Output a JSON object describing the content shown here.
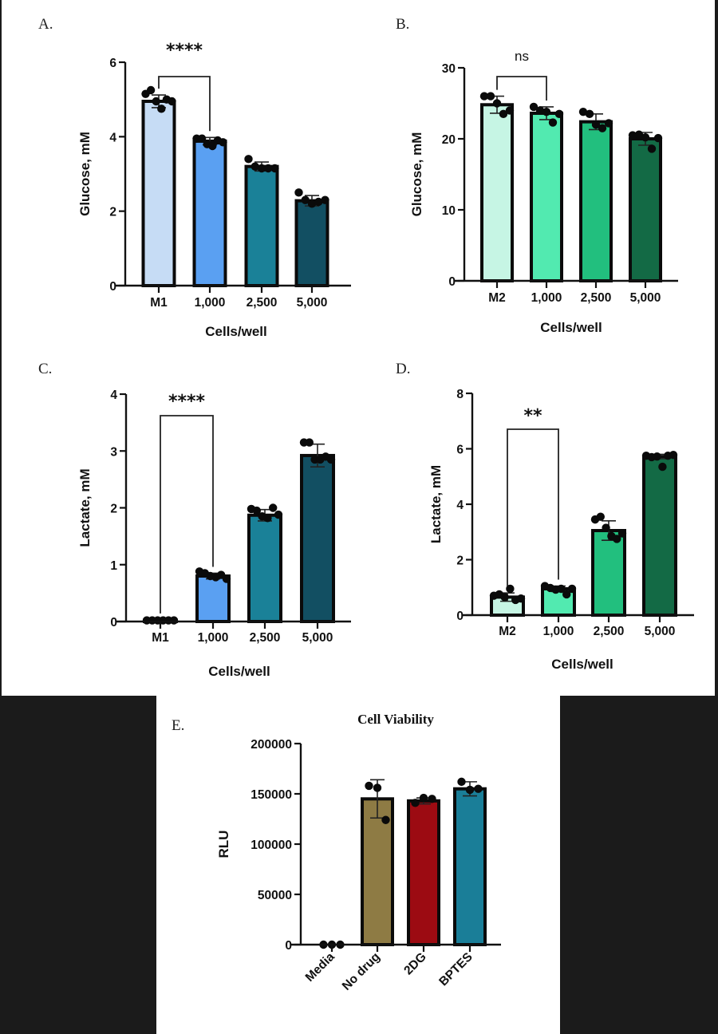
{
  "chart_data": [
    {
      "panel": "A.",
      "type": "bar",
      "title": "",
      "xlabel": "Cells/well",
      "ylabel": "Glucose, mM",
      "ylim": [
        0,
        6
      ],
      "yticks": [
        "0",
        "2",
        "4",
        "6"
      ],
      "ytick_values": [
        0,
        2,
        4,
        6
      ],
      "categories": [
        "M1",
        "1,000",
        "2,500",
        "5,000"
      ],
      "values": [
        4.95,
        3.88,
        3.2,
        2.28
      ],
      "errors": [
        0.17,
        0.1,
        0.12,
        0.14
      ],
      "points": [
        [
          5.15,
          5.25,
          4.95,
          4.75,
          5.0,
          4.95
        ],
        [
          3.95,
          3.95,
          3.8,
          3.75,
          3.9,
          3.85
        ],
        [
          3.4,
          3.2,
          3.15,
          3.15,
          3.15
        ],
        [
          2.5,
          2.3,
          2.2,
          2.25,
          2.3
        ]
      ],
      "colors": [
        "#c6dcf5",
        "#5aa0f2",
        "#1a8198",
        "#124f62"
      ],
      "significance": {
        "label": "****",
        "from": 0,
        "to": 1,
        "y": 5.75
      }
    },
    {
      "panel": "B.",
      "type": "bar",
      "title": "",
      "xlabel": "Cells/well",
      "ylabel": "Glucose, mM",
      "ylim": [
        0,
        30
      ],
      "yticks": [
        "0",
        "10",
        "20",
        "30"
      ],
      "ytick_values": [
        0,
        10,
        20,
        30
      ],
      "categories": [
        "M2",
        "1,000",
        "2,500",
        "5,000"
      ],
      "values": [
        24.8,
        23.6,
        22.4,
        20.0
      ],
      "errors": [
        1.2,
        0.9,
        1.1,
        0.9
      ],
      "points": [
        [
          26.0,
          26.0,
          25.0,
          23.5,
          24.0
        ],
        [
          24.5,
          24.0,
          23.8,
          22.3,
          23.5
        ],
        [
          23.8,
          23.5,
          22.0,
          21.5,
          22.2
        ],
        [
          20.5,
          20.6,
          20.2,
          18.6,
          20.1
        ]
      ],
      "colors": [
        "#c6f5e4",
        "#52eab0",
        "#22bf7e",
        "#136a45"
      ],
      "significance": {
        "label": "ns",
        "from": 0,
        "to": 1,
        "y": 28.6
      }
    },
    {
      "panel": "C.",
      "type": "bar",
      "title": "",
      "xlabel": "Cells/well",
      "ylabel": "Lactate, mM",
      "ylim": [
        0,
        4
      ],
      "yticks": [
        "0",
        "1",
        "2",
        "3",
        "4"
      ],
      "ytick_values": [
        0,
        1,
        2,
        3,
        4
      ],
      "categories": [
        "M1",
        "1,000",
        "2,500",
        "5,000"
      ],
      "values": [
        0.02,
        0.8,
        1.87,
        2.92
      ],
      "errors": [
        0.01,
        0.05,
        0.1,
        0.2
      ],
      "points": [
        [
          0.02,
          0.02,
          0.02,
          0.02,
          0.02,
          0.02
        ],
        [
          0.88,
          0.85,
          0.8,
          0.78,
          0.82,
          0.75
        ],
        [
          1.98,
          1.95,
          1.85,
          1.82,
          2.0,
          1.88
        ],
        [
          3.15,
          3.15,
          2.85,
          2.85,
          2.9,
          2.85
        ]
      ],
      "colors": [
        "#c6dcf5",
        "#5aa0f2",
        "#1a8198",
        "#124f62"
      ],
      "significance": {
        "label": "****",
        "from": 0,
        "to": 1,
        "y": 3.62
      }
    },
    {
      "panel": "D.",
      "type": "bar",
      "title": "",
      "xlabel": "Cells/well",
      "ylabel": "Lactate, mM",
      "ylim": [
        0,
        8
      ],
      "yticks": [
        "0",
        "2",
        "4",
        "6",
        "8"
      ],
      "ytick_values": [
        0,
        2,
        4,
        6,
        8
      ],
      "categories": [
        "M2",
        "1,000",
        "2,500",
        "5,000"
      ],
      "values": [
        0.65,
        0.95,
        3.05,
        5.72
      ],
      "errors": [
        0.15,
        0.1,
        0.35,
        0.08
      ],
      "points": [
        [
          0.7,
          0.75,
          0.65,
          0.95,
          0.55,
          0.6
        ],
        [
          1.05,
          0.98,
          0.92,
          0.95,
          0.75,
          0.95
        ],
        [
          3.45,
          3.55,
          3.15,
          2.85,
          2.75,
          2.95
        ],
        [
          5.75,
          5.7,
          5.72,
          5.35,
          5.75,
          5.78
        ]
      ],
      "colors": [
        "#c6f5e4",
        "#52eab0",
        "#22bf7e",
        "#136a45"
      ],
      "significance": {
        "label": "**",
        "from": 0,
        "to": 1,
        "y": 6.75
      }
    },
    {
      "panel": "E.",
      "type": "bar",
      "title": "Cell Viability",
      "xlabel": "",
      "ylabel": "RLU",
      "ylim": [
        0,
        200000
      ],
      "yticks": [
        "0",
        "50000",
        "100000",
        "150000",
        "200000"
      ],
      "ytick_values": [
        0,
        50000,
        100000,
        150000,
        200000
      ],
      "categories": [
        "Media",
        "No drug",
        "2DG",
        "BPTES"
      ],
      "values": [
        0,
        145000,
        143000,
        155000
      ],
      "errors": [
        0,
        19000,
        3000,
        7000
      ],
      "points": [
        [
          0,
          0,
          0
        ],
        [
          158000,
          156000,
          124000
        ],
        [
          141000,
          146000,
          145000
        ],
        [
          162000,
          154000,
          155000
        ]
      ],
      "colors": [
        "#ffffff",
        "#8e7b44",
        "#9c0b12",
        "#1a7e98"
      ],
      "significance": null
    }
  ]
}
